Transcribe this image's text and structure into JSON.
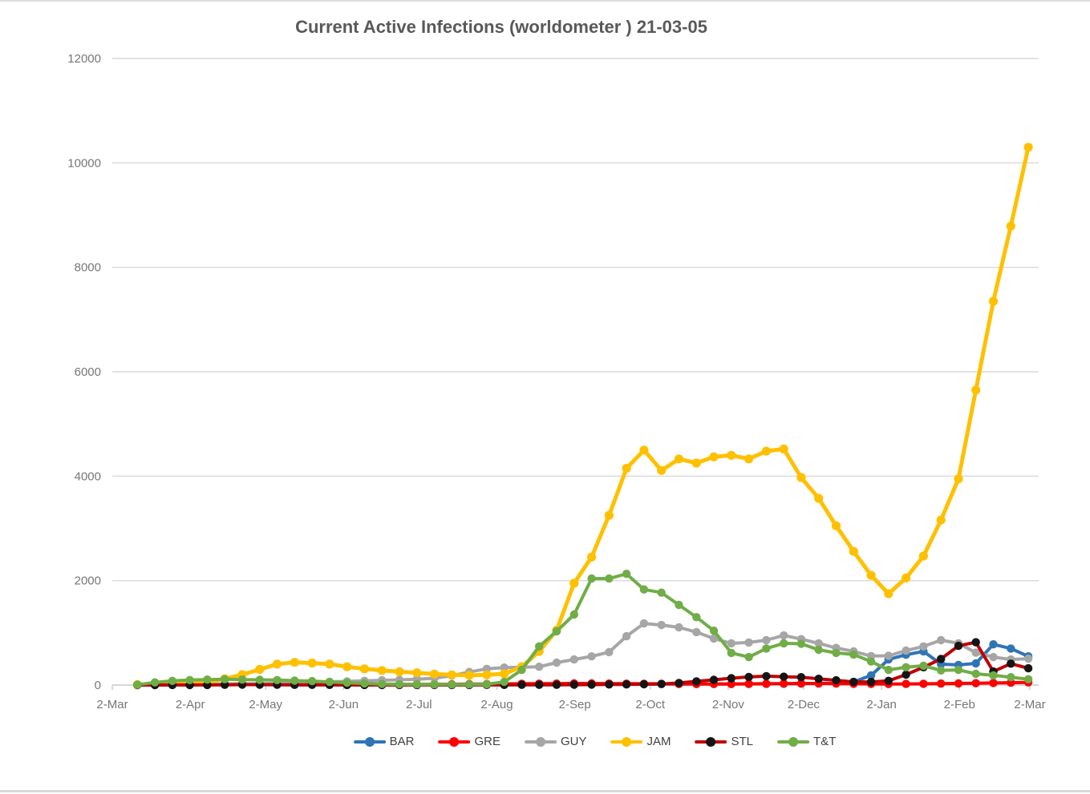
{
  "page": {
    "top_rule_color": "#dcdcdc",
    "bottom_rule_color": "#d8d8d8",
    "background": "#ffffff"
  },
  "chart_data": {
    "type": "line",
    "title": "Current Active Infections (worldometer ) 21-03-05",
    "xlabel": "",
    "ylabel": "",
    "ylim": [
      0,
      12000
    ],
    "y_ticks": [
      0,
      2000,
      4000,
      6000,
      8000,
      10000,
      12000
    ],
    "grid": "horizontal",
    "gridline_color": "#d9d9d9",
    "axis_line_color": "#c9c9c9",
    "tick_text_color": "#767676",
    "title_color": "#595959",
    "legend_position": "bottom",
    "x_unit": "weekly data points, 9-Mar-2020 through 1-Mar-2021",
    "x_ticks": [
      {
        "label": "2-Mar",
        "day": 0
      },
      {
        "label": "2-Apr",
        "day": 31
      },
      {
        "label": "2-May",
        "day": 61
      },
      {
        "label": "2-Jun",
        "day": 92
      },
      {
        "label": "2-Jul",
        "day": 122
      },
      {
        "label": "2-Aug",
        "day": 153
      },
      {
        "label": "2-Sep",
        "day": 184
      },
      {
        "label": "2-Oct",
        "day": 214
      },
      {
        "label": "2-Nov",
        "day": 245
      },
      {
        "label": "2-Dec",
        "day": 275
      },
      {
        "label": "2-Jan",
        "day": 306
      },
      {
        "label": "2-Feb",
        "day": 337
      },
      {
        "label": "2-Mar",
        "day": 365
      }
    ],
    "series": [
      {
        "name": "BAR",
        "color": "#2E75B6",
        "marker_color": "#2E75B6",
        "values": [
          0,
          2,
          4,
          6,
          8,
          10,
          10,
          8,
          6,
          5,
          5,
          4,
          4,
          3,
          3,
          3,
          3,
          3,
          4,
          4,
          5,
          5,
          6,
          8,
          10,
          12,
          14,
          15,
          16,
          18,
          18,
          20,
          20,
          22,
          22,
          24,
          25,
          25,
          28,
          30,
          35,
          60,
          185,
          490,
          580,
          645,
          400,
          385,
          415,
          780,
          700,
          550
        ]
      },
      {
        "name": "GRE",
        "color": "#FF0000",
        "marker_color": "#FF0000",
        "values": [
          2,
          5,
          8,
          10,
          14,
          20,
          25,
          22,
          18,
          15,
          12,
          10,
          10,
          8,
          8,
          10,
          12,
          14,
          15,
          18,
          20,
          22,
          24,
          26,
          28,
          30,
          30,
          28,
          26,
          25,
          24,
          22,
          20,
          20,
          20,
          22,
          25,
          28,
          30,
          30,
          28,
          25,
          22,
          20,
          22,
          25,
          28,
          30,
          35,
          40,
          45,
          50
        ]
      },
      {
        "name": "GUY",
        "color": "#A6A6A6",
        "marker_color": "#A6A6A6",
        "values": [
          5,
          8,
          10,
          12,
          15,
          18,
          22,
          28,
          35,
          45,
          55,
          60,
          70,
          80,
          90,
          100,
          110,
          130,
          180,
          250,
          310,
          335,
          340,
          350,
          430,
          490,
          550,
          630,
          935,
          1180,
          1150,
          1105,
          1015,
          890,
          800,
          815,
          860,
          950,
          880,
          800,
          710,
          645,
          555,
          560,
          660,
          740,
          860,
          800,
          620,
          535,
          490,
          505
        ]
      },
      {
        "name": "JAM",
        "color": "#FFC000",
        "marker_color": "#FFC000",
        "values": [
          8,
          12,
          18,
          28,
          50,
          120,
          200,
          300,
          400,
          435,
          420,
          400,
          350,
          310,
          280,
          255,
          235,
          210,
          195,
          185,
          195,
          215,
          350,
          645,
          1050,
          1950,
          2450,
          3250,
          4150,
          4500,
          4110,
          4330,
          4250,
          4370,
          4400,
          4330,
          4480,
          4520,
          3975,
          3575,
          3050,
          2560,
          2100,
          1750,
          2050,
          2470,
          3160,
          3950,
          5650,
          7350,
          8790,
          10300
        ]
      },
      {
        "name": "STL",
        "color": "#C00000",
        "marker_color": "#151515",
        "values": [
          0,
          0,
          1,
          1,
          2,
          5,
          8,
          8,
          6,
          5,
          4,
          3,
          2,
          2,
          2,
          2,
          2,
          2,
          2,
          2,
          3,
          3,
          4,
          5,
          5,
          6,
          8,
          10,
          12,
          15,
          20,
          40,
          70,
          100,
          130,
          155,
          170,
          160,
          150,
          120,
          90,
          60,
          60,
          80,
          200,
          340,
          500,
          750,
          820,
          260,
          410,
          320
        ]
      },
      {
        "name": "T&T",
        "color": "#70AD47",
        "marker_color": "#70AD47",
        "values": [
          5,
          50,
          80,
          95,
          105,
          110,
          105,
          100,
          95,
          85,
          75,
          60,
          45,
          30,
          20,
          15,
          12,
          10,
          10,
          12,
          15,
          60,
          290,
          740,
          1030,
          1350,
          2040,
          2040,
          2130,
          1830,
          1770,
          1535,
          1300,
          1040,
          615,
          535,
          700,
          800,
          790,
          675,
          615,
          585,
          450,
          290,
          340,
          370,
          280,
          290,
          215,
          185,
          150,
          110
        ]
      }
    ]
  }
}
